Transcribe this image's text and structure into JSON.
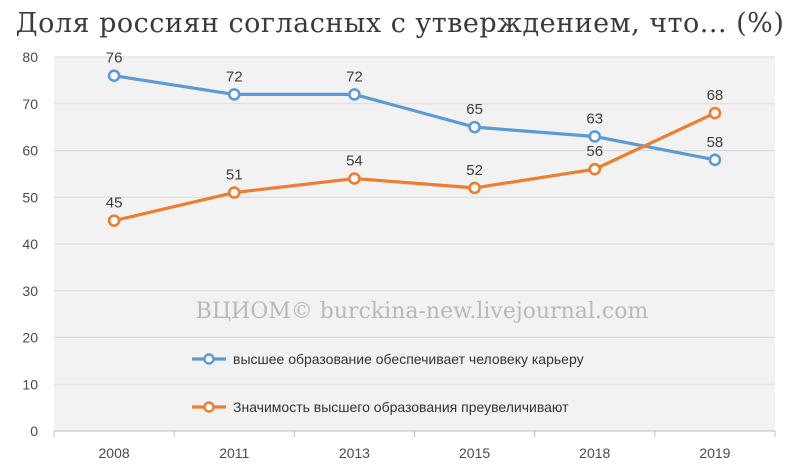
{
  "chart_data": {
    "type": "line",
    "title": "Доля россиян согласных с утверждением, что... (%)",
    "categories": [
      "2008",
      "2011",
      "2013",
      "2015",
      "2018",
      "2019"
    ],
    "ylim": [
      0,
      80
    ],
    "yticks": [
      0,
      10,
      20,
      30,
      40,
      50,
      60,
      70,
      80
    ],
    "grid": true,
    "legend_position": "inside-bottom-left",
    "series": [
      {
        "name": "высшее образование обеспечивает человеку карьеру",
        "values": [
          76,
          72,
          72,
          65,
          63,
          58
        ],
        "color": "#5b9bd5"
      },
      {
        "name": "Значимость высшего образования преувеличивают",
        "values": [
          45,
          51,
          54,
          52,
          56,
          68
        ],
        "color": "#ed7d31"
      }
    ],
    "annotation": "ВЦИОМ© burckina-new.livejournal.com"
  }
}
